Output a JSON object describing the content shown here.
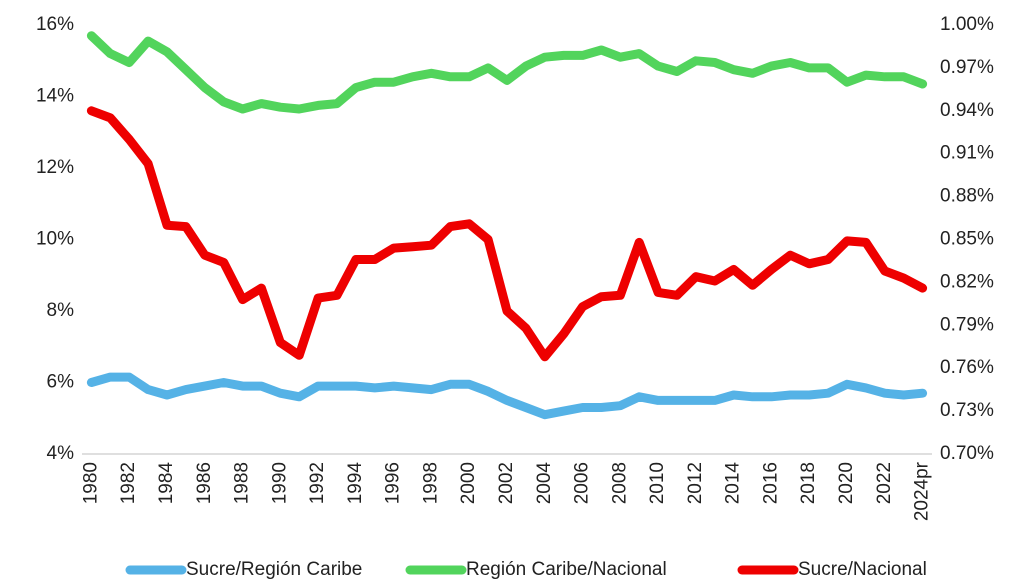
{
  "chart_data": {
    "type": "line",
    "categories": [
      "1980",
      null,
      "1982",
      null,
      "1984",
      null,
      "1986",
      null,
      "1988",
      null,
      "1990",
      null,
      "1992",
      null,
      "1994",
      null,
      "1996",
      null,
      "1998",
      null,
      "2000",
      null,
      "2002",
      null,
      "2004",
      null,
      "2006",
      null,
      "2008",
      null,
      "2010",
      null,
      "2012",
      null,
      "2014",
      null,
      "2016",
      null,
      "2018",
      null,
      "2020",
      null,
      "2022",
      null,
      "2024pr"
    ],
    "ylim": [
      4,
      16
    ],
    "yticks": [
      {
        "value": 4,
        "label": "4%"
      },
      {
        "value": 6,
        "label": "6%"
      },
      {
        "value": 8,
        "label": "8%"
      },
      {
        "value": 10,
        "label": "10%"
      },
      {
        "value": 12,
        "label": "12%"
      },
      {
        "value": 14,
        "label": "14%"
      },
      {
        "value": 16,
        "label": "16%"
      }
    ],
    "y2lim": [
      0.7,
      1.0
    ],
    "y2ticks": [
      {
        "value": 0.7,
        "label": "0.70%"
      },
      {
        "value": 0.73,
        "label": "0.73%"
      },
      {
        "value": 0.76,
        "label": "0.76%"
      },
      {
        "value": 0.79,
        "label": "0.79%"
      },
      {
        "value": 0.82,
        "label": "0.82%"
      },
      {
        "value": 0.85,
        "label": "0.85%"
      },
      {
        "value": 0.88,
        "label": "0.88%"
      },
      {
        "value": 0.91,
        "label": "0.91%"
      },
      {
        "value": 0.94,
        "label": "0.94%"
      },
      {
        "value": 0.97,
        "label": "0.97%"
      },
      {
        "value": 1.0,
        "label": "1.00%"
      }
    ],
    "legend": "bottom",
    "series": [
      {
        "name": "Sucre/Región Caribe",
        "color": "#55b2e6",
        "values": [
          6.0,
          6.15,
          6.15,
          5.8,
          5.65,
          5.8,
          5.9,
          6.0,
          5.9,
          5.9,
          5.7,
          5.6,
          5.9,
          5.9,
          5.9,
          5.85,
          5.9,
          5.85,
          5.8,
          5.95,
          5.95,
          5.75,
          5.5,
          5.3,
          5.1,
          5.2,
          5.3,
          5.3,
          5.35,
          5.6,
          5.5,
          5.5,
          5.5,
          5.5,
          5.65,
          5.6,
          5.6,
          5.65,
          5.65,
          5.7,
          5.95,
          5.85,
          5.7,
          5.65,
          5.7
        ]
      },
      {
        "name": "Región Caribe/Nacional",
        "color": "#52d45c",
        "values": [
          15.7,
          15.2,
          14.95,
          15.55,
          15.25,
          14.75,
          14.25,
          13.85,
          13.65,
          13.8,
          13.7,
          13.65,
          13.75,
          13.8,
          14.25,
          14.4,
          14.4,
          14.55,
          14.65,
          14.55,
          14.55,
          14.8,
          14.45,
          14.85,
          15.1,
          15.15,
          15.15,
          15.3,
          15.1,
          15.2,
          14.85,
          14.7,
          15.0,
          14.95,
          14.75,
          14.65,
          14.85,
          14.95,
          14.8,
          14.8,
          14.4,
          14.6,
          14.55,
          14.55,
          14.35
        ]
      },
      {
        "name": "Sucre/Nacional",
        "color": "#ee0000",
        "axis": "y2",
        "values": [
          0.94,
          0.935,
          0.92,
          0.903,
          0.86,
          0.859,
          0.839,
          0.834,
          0.808,
          0.816,
          0.778,
          0.769,
          0.809,
          0.811,
          0.836,
          0.836,
          0.844,
          0.845,
          0.846,
          0.859,
          0.861,
          0.85,
          0.8,
          0.788,
          0.768,
          0.784,
          0.803,
          0.81,
          0.811,
          0.848,
          0.813,
          0.811,
          0.824,
          0.821,
          0.829,
          0.818,
          0.829,
          0.839,
          0.833,
          0.836,
          0.849,
          0.848,
          0.828,
          0.823,
          0.816
        ]
      }
    ]
  }
}
